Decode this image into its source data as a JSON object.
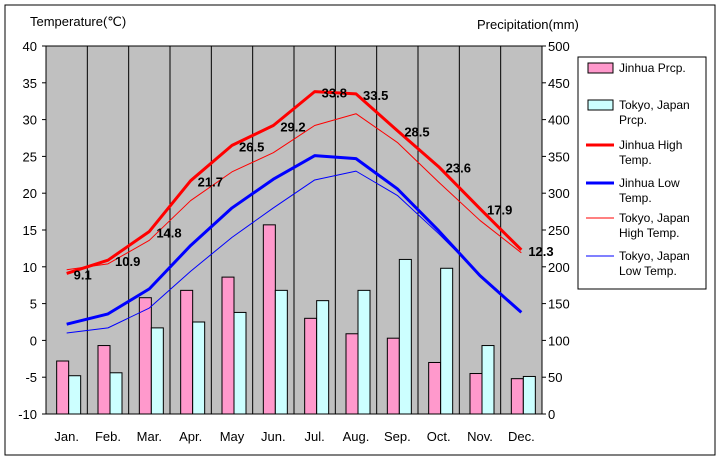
{
  "chart_data": {
    "type": "bar+line",
    "title": "",
    "left_axis": {
      "label": "Temperature(℃)",
      "min": -10,
      "max": 40,
      "step": 5
    },
    "right_axis": {
      "label": "Precipitation(mm)",
      "min": 0,
      "max": 500,
      "step": 50
    },
    "categories": [
      "Jan.",
      "Feb.",
      "Mar.",
      "Apr.",
      "May",
      "Jun.",
      "Jul.",
      "Aug.",
      "Sep.",
      "Oct.",
      "Nov.",
      "Dec."
    ],
    "bar_series": [
      {
        "name": "Jinhua Prcp.",
        "color": "#ff99cc",
        "values": [
          72,
          93,
          158,
          168,
          186,
          257,
          130,
          109,
          103,
          70,
          55,
          48
        ]
      },
      {
        "name": "Tokyo, Japan Prcp.",
        "color": "#ccffff",
        "values": [
          52,
          56,
          117,
          125,
          138,
          168,
          154,
          168,
          210,
          198,
          93,
          51
        ]
      }
    ],
    "line_series": [
      {
        "name": "Jinhua High Temp.",
        "color": "#ff0000",
        "width": 3,
        "values": [
          9.1,
          10.9,
          14.8,
          21.7,
          26.5,
          29.2,
          33.8,
          33.5,
          28.5,
          23.6,
          17.9,
          12.3
        ],
        "labeled": true
      },
      {
        "name": "Jinhua Low Temp.",
        "color": "#0000ff",
        "width": 3,
        "values": [
          2.2,
          3.6,
          7.0,
          12.9,
          18.0,
          21.9,
          25.1,
          24.7,
          20.6,
          14.9,
          8.8,
          3.8
        ],
        "labeled": false
      },
      {
        "name": "Tokyo, Japan High Temp.",
        "color": "#ff0000",
        "width": 1,
        "values": [
          9.6,
          10.4,
          13.6,
          19.0,
          22.9,
          25.5,
          29.2,
          30.8,
          26.9,
          21.5,
          16.3,
          11.9
        ],
        "labeled": false
      },
      {
        "name": "Tokyo, Japan Low Temp.",
        "color": "#0000ff",
        "width": 1,
        "values": [
          1.0,
          1.7,
          4.4,
          9.4,
          14.0,
          18.0,
          21.8,
          23.0,
          19.7,
          14.5,
          8.9,
          3.9
        ],
        "labeled": false
      }
    ],
    "legend": {
      "position": "right",
      "entries": [
        {
          "line1": "Jinhua Prcp.",
          "line2": ""
        },
        {
          "line1": "Tokyo, Japan",
          "line2": "Prcp."
        },
        {
          "line1": "Jinhua High",
          "line2": "Temp."
        },
        {
          "line1": "Jinhua Low",
          "line2": "Temp."
        },
        {
          "line1": "Tokyo, Japan",
          "line2": "High Temp."
        },
        {
          "line1": "Tokyo, Japan",
          "line2": "Low Temp."
        }
      ]
    },
    "plot_background": "#c0c0c0",
    "grid": "vertical"
  }
}
